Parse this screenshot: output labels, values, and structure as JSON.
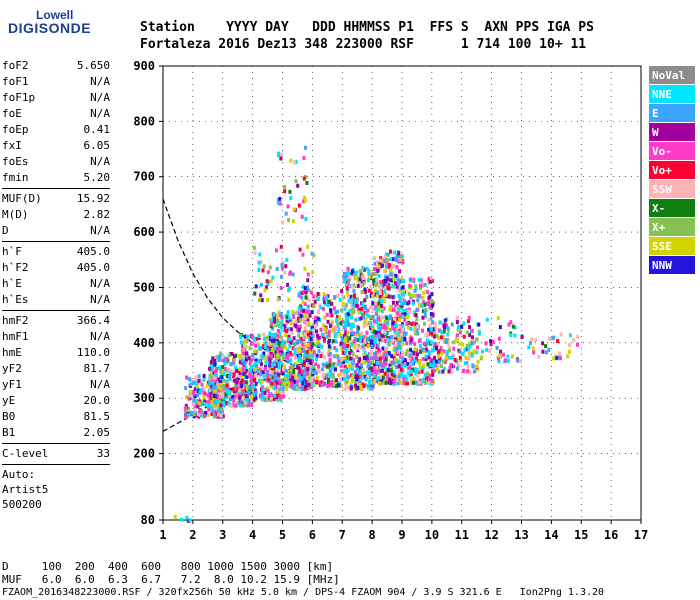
{
  "logo": {
    "line1": "Lowell",
    "line2": "DIGISONDE"
  },
  "header": {
    "line1": "Station    YYYY DAY   DDD HHMMSS P1  FFS S  AXN PPS IGA PS",
    "line2": "Fortaleza 2016 Dez13 348 223000 RSF      1 714 100 10+ 11"
  },
  "params": {
    "group1": [
      {
        "name": "foF2",
        "value": "5.650"
      },
      {
        "name": "foF1",
        "value": "N/A"
      },
      {
        "name": "foF1p",
        "value": "N/A"
      },
      {
        "name": "foE",
        "value": "N/A"
      },
      {
        "name": "foEp",
        "value": "0.41"
      },
      {
        "name": "fxI",
        "value": "6.05"
      },
      {
        "name": "foEs",
        "value": "N/A"
      },
      {
        "name": "fmin",
        "value": "5.20"
      }
    ],
    "group2": [
      {
        "name": "MUF(D)",
        "value": "15.92"
      },
      {
        "name": "M(D)",
        "value": "2.82"
      },
      {
        "name": "D",
        "value": "N/A"
      }
    ],
    "group3": [
      {
        "name": "h`F",
        "value": "405.0"
      },
      {
        "name": "h`F2",
        "value": "405.0"
      },
      {
        "name": "h`E",
        "value": "N/A"
      },
      {
        "name": "h`Es",
        "value": "N/A"
      }
    ],
    "group4": [
      {
        "name": "hmF2",
        "value": "366.4"
      },
      {
        "name": "hmF1",
        "value": "N/A"
      },
      {
        "name": "hmE",
        "value": "110.0"
      },
      {
        "name": "yF2",
        "value": "81.7"
      },
      {
        "name": "yF1",
        "value": "N/A"
      },
      {
        "name": "yE",
        "value": "20.0"
      },
      {
        "name": "B0",
        "value": "81.5"
      },
      {
        "name": "B1",
        "value": "2.05"
      }
    ],
    "group5": [
      {
        "name": "C-level",
        "value": "33"
      }
    ],
    "auto": {
      "line1": "Auto:",
      "line2": "Artist5",
      "line3": "500200"
    }
  },
  "footer": {
    "d_line": "D     100  200  400  600   800 1000 1500 3000 [km]",
    "muf_line": "MUF   6.0  6.0  6.3  6.7   7.2  8.0 10.2 15.9 [MHz]",
    "file_line": "FZAOM_2016348223000.RSF / 320fx256h 50 kHz 5.0 km / DPS-4 FZAOM 904 / 3.9 S 321.6 E   Ion2Png 1.3.20"
  },
  "legend": [
    {
      "label": "NoVal",
      "color": "#8c8c8c"
    },
    {
      "label": "NNE",
      "color": "#00e5ff"
    },
    {
      "label": "E",
      "color": "#3da5ff"
    },
    {
      "label": "W",
      "color": "#a1009e"
    },
    {
      "label": "Vo-",
      "color": "#ff3cc8"
    },
    {
      "label": "Vo+",
      "color": "#ff0033"
    },
    {
      "label": "SSW",
      "color": "#ffb4b4"
    },
    {
      "label": "X-",
      "color": "#0f7d0f"
    },
    {
      "label": "X+",
      "color": "#85c251"
    },
    {
      "label": "SSE",
      "color": "#d4d400"
    },
    {
      "label": "NNW",
      "color": "#2214d8"
    }
  ],
  "chart_data": {
    "type": "scatter",
    "title": "",
    "xlabel": "",
    "ylabel": "",
    "xlim": [
      1,
      17
    ],
    "ylim": [
      80,
      900
    ],
    "x_ticks": [
      1,
      2,
      3,
      4,
      5,
      6,
      7,
      8,
      9,
      10,
      11,
      12,
      13,
      14,
      15,
      16,
      17
    ],
    "y_ticks": [
      80,
      200,
      300,
      400,
      500,
      600,
      700,
      800,
      900
    ],
    "grid": true,
    "legend_position": "right",
    "clusters": [
      {
        "x_from": 1.7,
        "x_to": 3.0,
        "y_from": 270,
        "y_to": 345,
        "n": 240
      },
      {
        "x_from": 2.5,
        "x_to": 4.0,
        "y_from": 290,
        "y_to": 385,
        "n": 320
      },
      {
        "x_from": 3.5,
        "x_to": 5.0,
        "y_from": 300,
        "y_to": 420,
        "n": 360
      },
      {
        "x_from": 4.5,
        "x_to": 6.0,
        "y_from": 320,
        "y_to": 460,
        "n": 380
      },
      {
        "x_from": 5.5,
        "x_to": 7.0,
        "y_from": 325,
        "y_to": 500,
        "n": 360
      },
      {
        "x_from": 7.0,
        "x_to": 8.0,
        "y_from": 320,
        "y_to": 540,
        "n": 420
      },
      {
        "x_from": 8.0,
        "x_to": 9.0,
        "y_from": 330,
        "y_to": 570,
        "n": 460
      },
      {
        "x_from": 8.8,
        "x_to": 10.0,
        "y_from": 330,
        "y_to": 520,
        "n": 340
      },
      {
        "x_from": 10.0,
        "x_to": 11.5,
        "y_from": 350,
        "y_to": 450,
        "n": 160
      },
      {
        "x_from": 11.5,
        "x_to": 13.0,
        "y_from": 370,
        "y_to": 450,
        "n": 40
      },
      {
        "x_from": 13.0,
        "x_to": 15.0,
        "y_from": 375,
        "y_to": 420,
        "n": 30
      },
      {
        "x_from": 4.8,
        "x_to": 5.8,
        "y_from": 620,
        "y_to": 760,
        "n": 35
      },
      {
        "x_from": 4.0,
        "x_to": 6.0,
        "y_from": 480,
        "y_to": 580,
        "n": 60
      },
      {
        "x_from": 1.3,
        "x_to": 1.9,
        "y_from": 82,
        "y_to": 90,
        "n": 6
      }
    ],
    "curves": [
      {
        "name": "upper dashed",
        "x": [
          1.0,
          1.5,
          2.0,
          2.5,
          3.0,
          3.5,
          4.0,
          4.5,
          5.0,
          5.5,
          6.0
        ],
        "y": [
          660,
          585,
          525,
          480,
          445,
          420,
          400,
          385,
          370,
          355,
          345
        ]
      },
      {
        "name": "lower dashed",
        "x": [
          1.0,
          1.5,
          2.0,
          2.5,
          3.0,
          3.5,
          4.0,
          4.5,
          5.0,
          5.5,
          6.0
        ],
        "y": [
          240,
          255,
          270,
          285,
          300,
          315,
          325,
          335,
          345,
          355,
          365
        ]
      }
    ]
  }
}
